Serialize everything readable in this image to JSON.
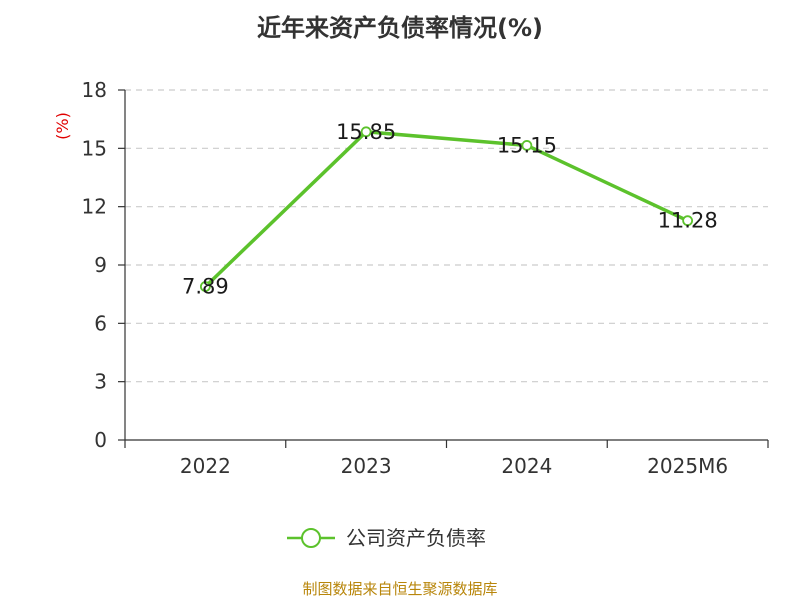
{
  "chart_data": {
    "type": "line",
    "title": "近年来资产负债率情况(%)",
    "ylabel": "(%)",
    "xlabel": "",
    "categories": [
      "2022",
      "2023",
      "2024",
      "2025M6"
    ],
    "series": [
      {
        "name": "公司资产负债率",
        "values": [
          7.89,
          15.85,
          15.15,
          11.28
        ]
      }
    ],
    "data_labels": [
      "7.89",
      "15.85",
      "15.15",
      "11.28"
    ],
    "ylim": [
      0,
      18
    ],
    "yticks": [
      0,
      3,
      6,
      9,
      12,
      15,
      18
    ],
    "grid": true,
    "legend_position": "bottom",
    "colors": {
      "series": "#5cc22c",
      "axis": "#333333",
      "grid": "#cccccc",
      "ylabel": "#e00000",
      "source": "#b8860b"
    }
  },
  "source_note": "制图数据来自恒生聚源数据库"
}
